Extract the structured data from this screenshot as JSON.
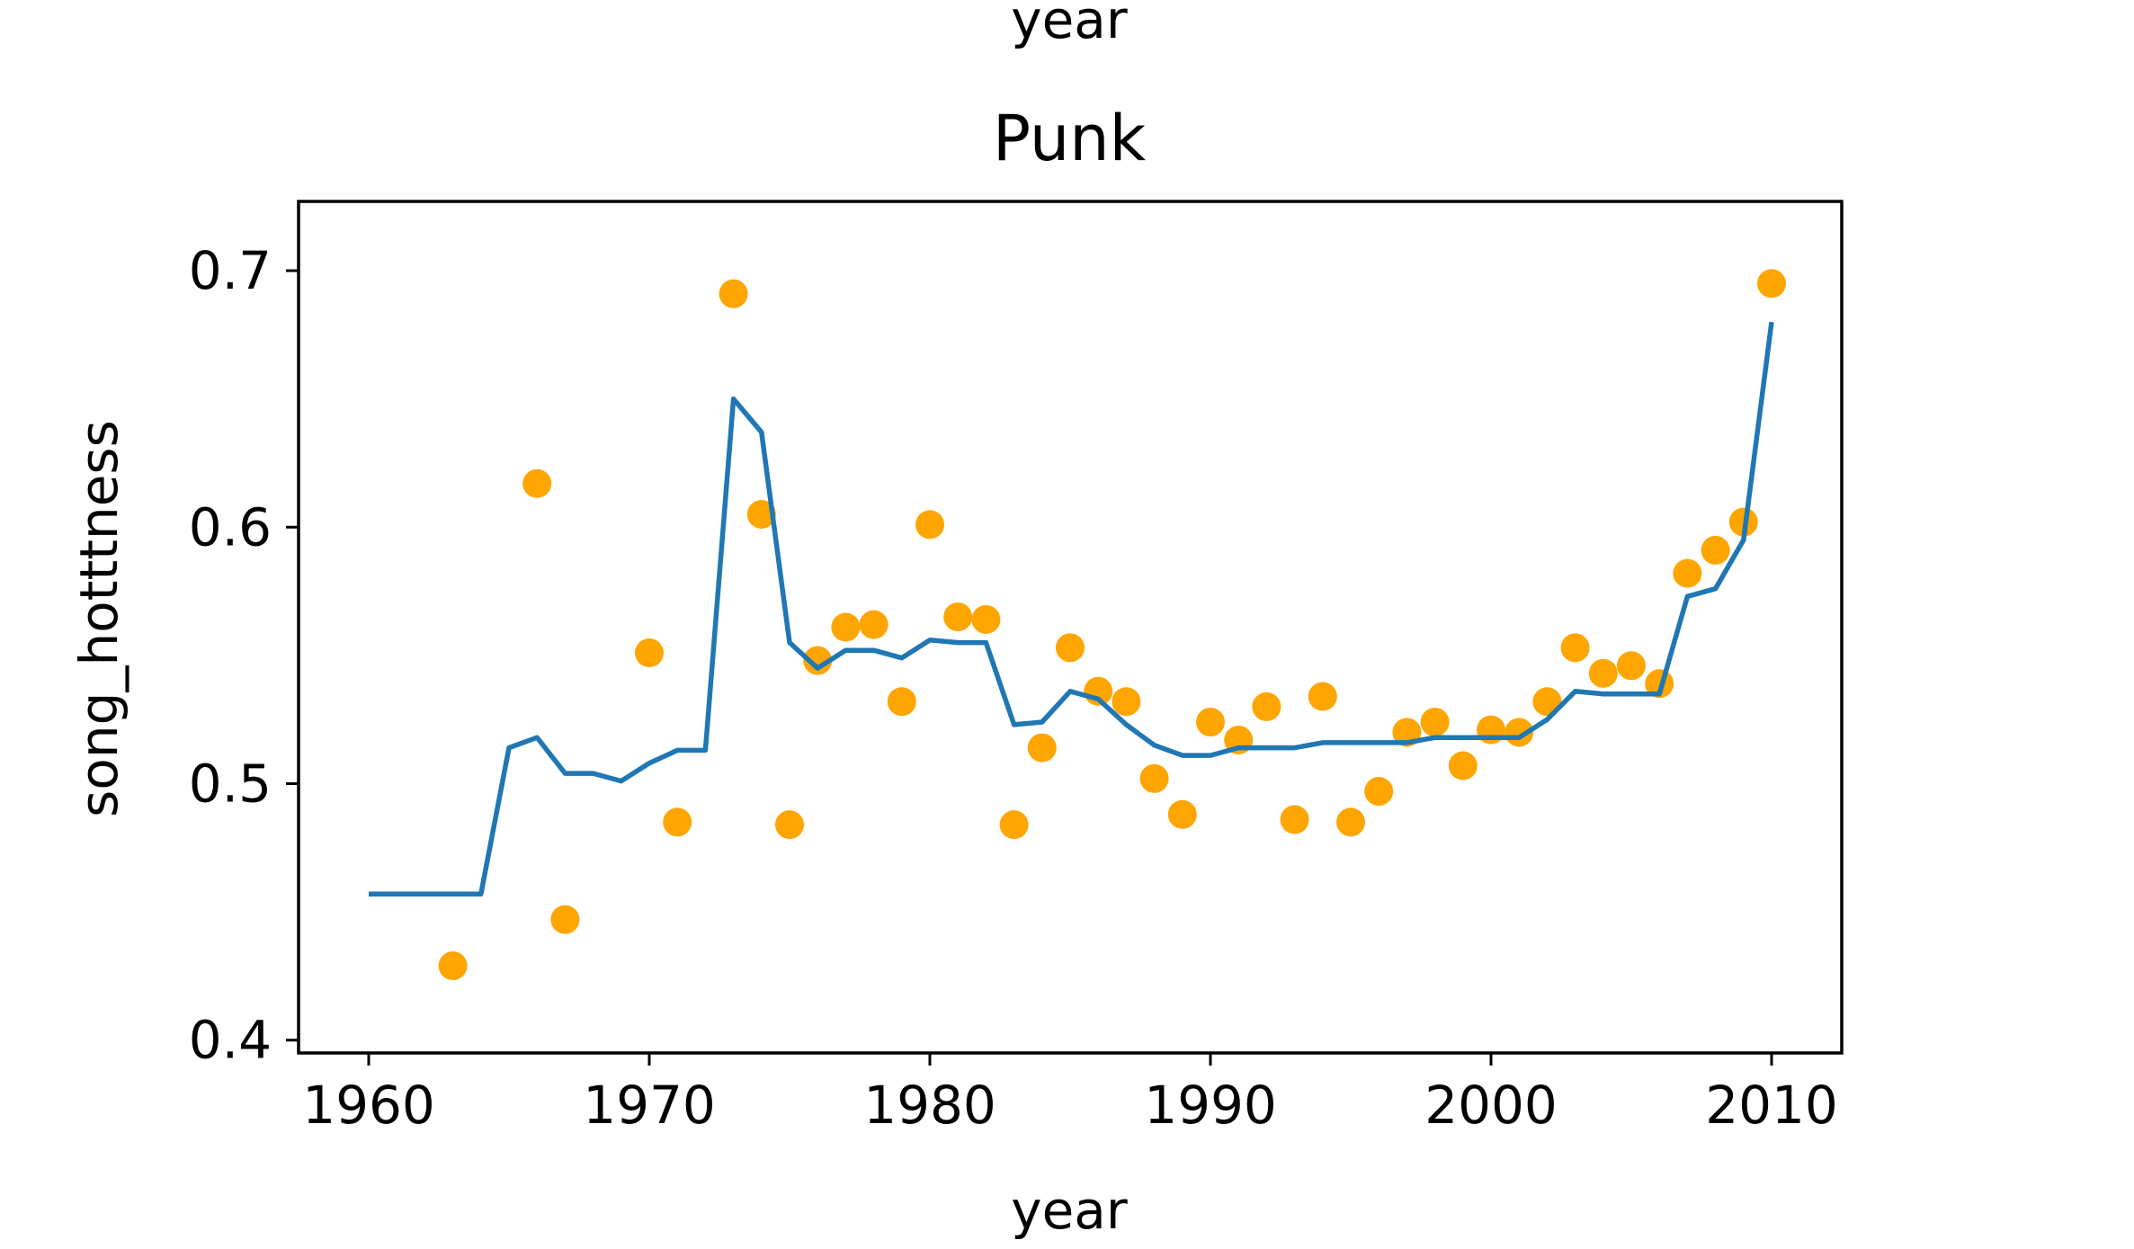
{
  "chart_data": {
    "type": "scatter",
    "title": "Punk",
    "top_label": "year",
    "xlabel": "year",
    "ylabel": "song_hotttness",
    "xlim": [
      1957.5,
      2012.5
    ],
    "ylim": [
      0.395,
      0.727
    ],
    "x_ticks": [
      1960,
      1970,
      1980,
      1990,
      2000,
      2010
    ],
    "x_tick_labels": [
      "1960",
      "1970",
      "1980",
      "1990",
      "2000",
      "2010"
    ],
    "y_ticks": [
      0.4,
      0.5,
      0.6,
      0.7
    ],
    "y_tick_labels": [
      "0.4",
      "0.5",
      "0.6",
      "0.7"
    ],
    "grid": false,
    "legend": "none",
    "colors": {
      "points": "#ffa500",
      "line": "#1f77b4"
    },
    "series": [
      {
        "kind": "scatter",
        "x": [
          1963,
          1966,
          1967,
          1970,
          1971,
          1973,
          1974,
          1975,
          1976,
          1977,
          1978,
          1979,
          1980,
          1981,
          1982,
          1983,
          1984,
          1985,
          1986,
          1987,
          1988,
          1989,
          1990,
          1991,
          1992,
          1993,
          1994,
          1995,
          1996,
          1997,
          1998,
          1999,
          2000,
          2001,
          2002,
          2003,
          2004,
          2005,
          2006,
          2007,
          2008,
          2009,
          2010
        ],
        "y": [
          0.429,
          0.617,
          0.447,
          0.551,
          0.485,
          0.691,
          0.605,
          0.484,
          0.548,
          0.561,
          0.562,
          0.532,
          0.601,
          0.565,
          0.564,
          0.484,
          0.514,
          0.553,
          0.536,
          0.532,
          0.502,
          0.488,
          0.524,
          0.517,
          0.53,
          0.486,
          0.534,
          0.485,
          0.497,
          0.52,
          0.524,
          0.507,
          0.521,
          0.52,
          0.532,
          0.553,
          0.543,
          0.546,
          0.539,
          0.582,
          0.591,
          0.602,
          0.695
        ]
      },
      {
        "kind": "line",
        "x": [
          1960,
          1961,
          1962,
          1963,
          1964,
          1965,
          1966,
          1967,
          1968,
          1969,
          1970,
          1971,
          1972,
          1973,
          1974,
          1975,
          1976,
          1977,
          1978,
          1979,
          1980,
          1981,
          1982,
          1983,
          1984,
          1985,
          1986,
          1987,
          1988,
          1989,
          1990,
          1991,
          1992,
          1993,
          1994,
          1995,
          1996,
          1997,
          1998,
          1999,
          2000,
          2001,
          2002,
          2003,
          2004,
          2005,
          2006,
          2007,
          2008,
          2009,
          2010
        ],
        "y": [
          0.457,
          0.457,
          0.457,
          0.457,
          0.457,
          0.514,
          0.518,
          0.504,
          0.504,
          0.501,
          0.508,
          0.513,
          0.513,
          0.65,
          0.637,
          0.555,
          0.545,
          0.552,
          0.552,
          0.549,
          0.556,
          0.555,
          0.555,
          0.523,
          0.524,
          0.536,
          0.533,
          0.523,
          0.515,
          0.511,
          0.511,
          0.514,
          0.514,
          0.514,
          0.516,
          0.516,
          0.516,
          0.516,
          0.518,
          0.518,
          0.518,
          0.518,
          0.525,
          0.536,
          0.535,
          0.535,
          0.535,
          0.573,
          0.576,
          0.595,
          0.68
        ]
      }
    ]
  }
}
